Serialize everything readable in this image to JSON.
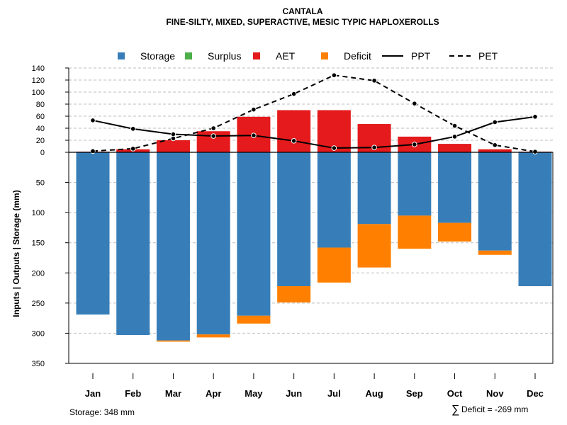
{
  "chart_data": {
    "type": "bar",
    "title": "CANTALA",
    "subtitle": "FINE-SILTY, MIXED, SUPERACTIVE, MESIC TYPIC HAPLOXEROLLS",
    "ylabel": "Inputs | Outputs | Storage    (mm)",
    "upper_ticks": [
      0,
      20,
      40,
      60,
      80,
      100,
      120,
      140
    ],
    "lower_ticks": [
      50,
      100,
      150,
      200,
      250,
      300,
      350
    ],
    "upper_range": [
      0,
      140
    ],
    "lower_range": [
      0,
      350
    ],
    "categories": [
      "Jan",
      "Feb",
      "Mar",
      "Apr",
      "May",
      "Jun",
      "Jul",
      "Aug",
      "Sep",
      "Oct",
      "Nov",
      "Dec"
    ],
    "aet": [
      1,
      5,
      20,
      35,
      59,
      70,
      70,
      47,
      26,
      14,
      5,
      1
    ],
    "surplus": [
      0,
      0,
      0,
      0,
      0,
      0,
      0,
      0,
      0,
      0,
      0,
      0
    ],
    "storage": [
      269,
      303,
      312,
      302,
      271,
      222,
      158,
      119,
      105,
      117,
      163,
      222
    ],
    "deficit": [
      0,
      0,
      2,
      5,
      13,
      27,
      58,
      72,
      55,
      31,
      7,
      0
    ],
    "ppt": [
      53,
      39,
      30,
      27,
      28,
      19,
      7,
      8,
      13,
      26,
      50,
      59
    ],
    "pet": [
      2,
      6,
      23,
      40,
      71,
      97,
      128,
      119,
      81,
      44,
      12,
      1
    ],
    "legend": [
      {
        "key": "storage",
        "label": "Storage",
        "kind": "box",
        "color": "#377EB8"
      },
      {
        "key": "surplus",
        "label": "Surplus",
        "kind": "box",
        "color": "#4DAF4A"
      },
      {
        "key": "aet",
        "label": "AET",
        "kind": "box",
        "color": "#E41A1C"
      },
      {
        "key": "deficit",
        "label": "Deficit",
        "kind": "box",
        "color": "#FF7F00"
      },
      {
        "key": "ppt",
        "label": "PPT",
        "kind": "solid",
        "color": "#000000"
      },
      {
        "key": "pet",
        "label": "PET",
        "kind": "dashed",
        "color": "#000000"
      }
    ],
    "colors": {
      "storage": "#377EB8",
      "surplus": "#4DAF4A",
      "aet": "#E41A1C",
      "deficit": "#FF7F00",
      "grid": "#BEBEBE",
      "line": "#000000"
    }
  },
  "footer": {
    "storage_note": "Storage: 348 mm",
    "deficit_symbol": "∑",
    "deficit_note": "Deficit = -269 mm"
  }
}
